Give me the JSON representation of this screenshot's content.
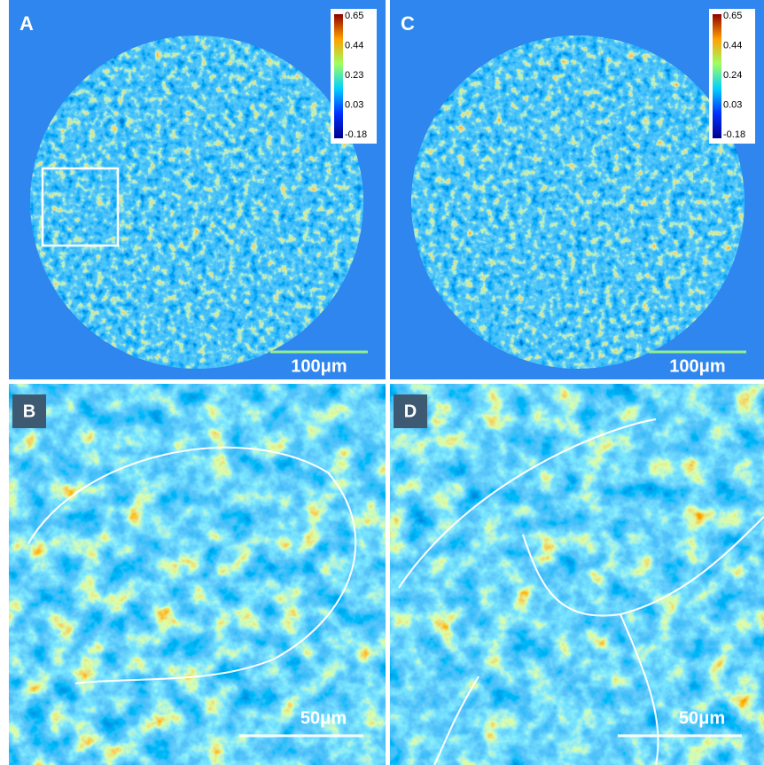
{
  "panels": [
    {
      "label": "A",
      "colorbar": [
        "0.65",
        "0.44",
        "0.23",
        "0.03",
        "-0.18"
      ],
      "scale_bar": "100μm"
    },
    {
      "label": "C",
      "colorbar": [
        "0.65",
        "0.44",
        "0.24",
        "0.03",
        "-0.18"
      ],
      "scale_bar": "100μm"
    },
    {
      "label": "B",
      "scale_bar": "50μm"
    },
    {
      "label": "D",
      "scale_bar": "50μm"
    }
  ]
}
